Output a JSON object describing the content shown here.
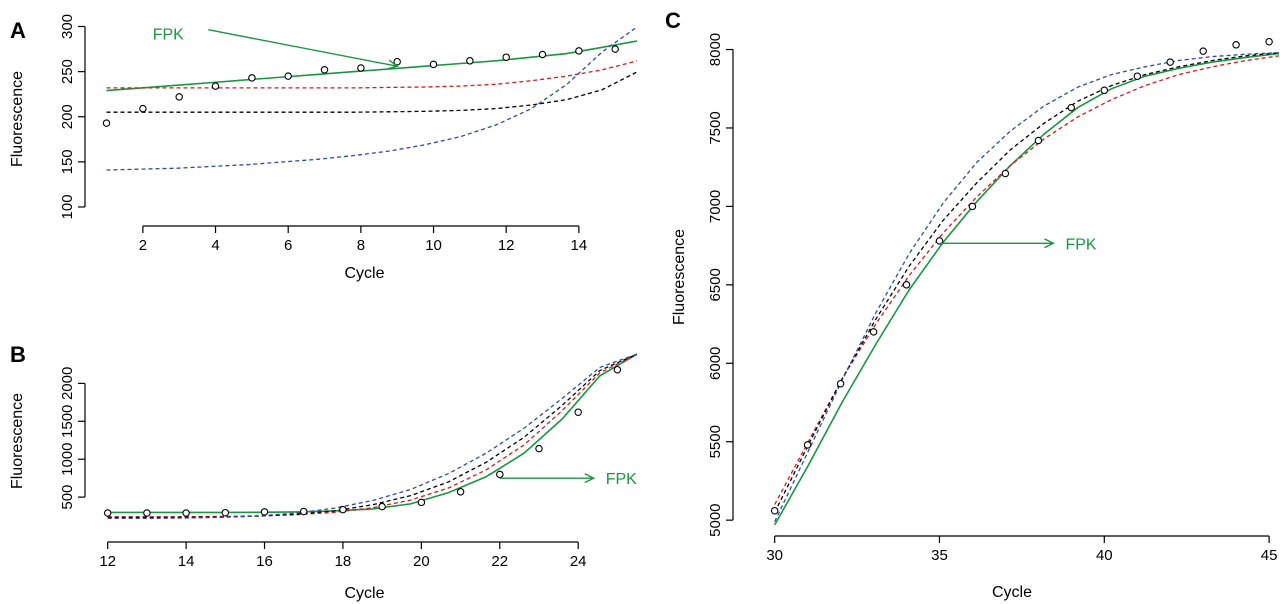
{
  "chart_data": [
    {
      "panel": "A",
      "type": "scatter",
      "xlabel": "Cycle",
      "ylabel": "Fluorescence",
      "xlim": [
        0.6,
        15.6
      ],
      "ylim": [
        90,
        305
      ],
      "xticks": [
        2,
        4,
        6,
        8,
        10,
        12,
        14
      ],
      "yticks": [
        100,
        150,
        200,
        250,
        300
      ],
      "x": [
        1,
        2,
        3,
        4,
        5,
        6,
        7,
        8,
        9,
        10,
        11,
        12,
        13,
        14,
        15
      ],
      "observed": [
        193,
        209,
        222,
        234,
        243,
        245,
        252,
        254,
        261,
        258,
        262,
        266,
        269,
        273,
        275
      ],
      "fits": [
        {
          "color": "#1a9641",
          "style": "solid",
          "values": [
            229,
            232,
            235,
            238,
            241,
            244,
            247,
            250,
            253,
            256,
            259,
            262,
            266,
            270,
            277,
            284
          ]
        },
        {
          "color": "#d7191c",
          "style": "dashed",
          "values": [
            232,
            232,
            232,
            232,
            232,
            232,
            232,
            232,
            232.5,
            233,
            234,
            236,
            240,
            245,
            252,
            262
          ]
        },
        {
          "color": "#000000",
          "style": "dashed",
          "values": [
            205,
            205,
            205,
            205,
            205,
            205,
            205,
            205,
            205.5,
            206,
            207,
            209,
            213,
            219,
            230,
            250
          ]
        },
        {
          "color": "#2c4da6",
          "style": "dashed",
          "values": [
            141,
            142,
            143,
            145,
            147,
            150,
            153,
            157,
            162,
            169,
            178,
            191,
            209,
            236,
            272,
            300
          ]
        }
      ],
      "annotation": {
        "text": "FPK",
        "color": "#1a9641",
        "x": 2.7,
        "y": 292,
        "arrow_to": [
          9,
          256
        ]
      }
    },
    {
      "panel": "B",
      "type": "scatter",
      "xlabel": "Cycle",
      "ylabel": "Fluorescence",
      "xlim": [
        11.6,
        25.5
      ],
      "ylim": [
        40,
        2440
      ],
      "xticks": [
        12,
        14,
        16,
        18,
        20,
        22,
        24
      ],
      "yticks": [
        500,
        1000,
        1500,
        2000
      ],
      "x": [
        12,
        13,
        14,
        15,
        16,
        17,
        18,
        19,
        20,
        21,
        22,
        23,
        24,
        25
      ],
      "observed": [
        290,
        290,
        290,
        295,
        305,
        310,
        335,
        375,
        430,
        570,
        800,
        1140,
        1620,
        2180
      ],
      "fits": [
        {
          "color": "#1a9641",
          "style": "solid",
          "values": [
            298,
            298,
            298,
            298,
            300,
            305,
            318,
            345,
            410,
            560,
            770,
            1080,
            1530,
            2100,
            2390
          ]
        },
        {
          "color": "#d7191c",
          "style": "dashed",
          "values": [
            240,
            240,
            242,
            245,
            252,
            268,
            300,
            360,
            460,
            620,
            860,
            1190,
            1640,
            2140,
            2390
          ]
        },
        {
          "color": "#000000",
          "style": "dashed",
          "values": [
            232,
            232,
            234,
            238,
            250,
            275,
            320,
            400,
            520,
            700,
            960,
            1290,
            1710,
            2170,
            2390
          ]
        },
        {
          "color": "#2c4da6",
          "style": "dashed",
          "values": [
            220,
            220,
            224,
            232,
            252,
            290,
            355,
            455,
            600,
            810,
            1080,
            1410,
            1800,
            2210,
            2390
          ]
        }
      ],
      "annotation": {
        "text": "FPK",
        "color": "#1a9641",
        "x": 24.6,
        "y": 750,
        "arrow_to": [
          22,
          750
        ]
      }
    },
    {
      "panel": "C",
      "type": "scatter",
      "xlabel": "Cycle",
      "ylabel": "Fluorescence",
      "xlim": [
        29.1,
        45.3
      ],
      "ylim": [
        4950,
        8150
      ],
      "xticks": [
        30,
        35,
        40,
        45
      ],
      "yticks": [
        5000,
        5500,
        6000,
        6500,
        7000,
        7500,
        8000
      ],
      "x": [
        30,
        31,
        32,
        33,
        34,
        35,
        36,
        37,
        38,
        39,
        40,
        41,
        42,
        43,
        44,
        45
      ],
      "observed": [
        5060,
        5480,
        5870,
        6200,
        6500,
        6780,
        7000,
        7210,
        7420,
        7630,
        7740,
        7830,
        7920,
        7990,
        8030,
        8050
      ],
      "fits": [
        {
          "color": "#1a9641",
          "style": "solid",
          "values": [
            4970,
            5350,
            5750,
            6120,
            6470,
            6770,
            7030,
            7260,
            7460,
            7630,
            7750,
            7830,
            7880,
            7920,
            7950,
            7975
          ]
        },
        {
          "color": "#d7191c",
          "style": "dashed",
          "values": [
            5100,
            5500,
            5900,
            6250,
            6560,
            6830,
            7060,
            7260,
            7430,
            7570,
            7680,
            7770,
            7840,
            7890,
            7930,
            7960
          ]
        },
        {
          "color": "#000000",
          "style": "dashed",
          "values": [
            5050,
            5480,
            5900,
            6280,
            6620,
            6910,
            7150,
            7360,
            7530,
            7670,
            7770,
            7840,
            7890,
            7930,
            7960,
            7980
          ]
        },
        {
          "color": "#2c4da6",
          "style": "dashed",
          "values": [
            4990,
            5440,
            5890,
            6320,
            6700,
            7020,
            7280,
            7480,
            7640,
            7760,
            7840,
            7890,
            7930,
            7955,
            7970,
            7980
          ]
        }
      ],
      "annotation": {
        "text": "FPK",
        "color": "#1a9641",
        "x": 38.7,
        "y": 6765,
        "arrow_to": [
          35,
          6765
        ]
      }
    }
  ]
}
